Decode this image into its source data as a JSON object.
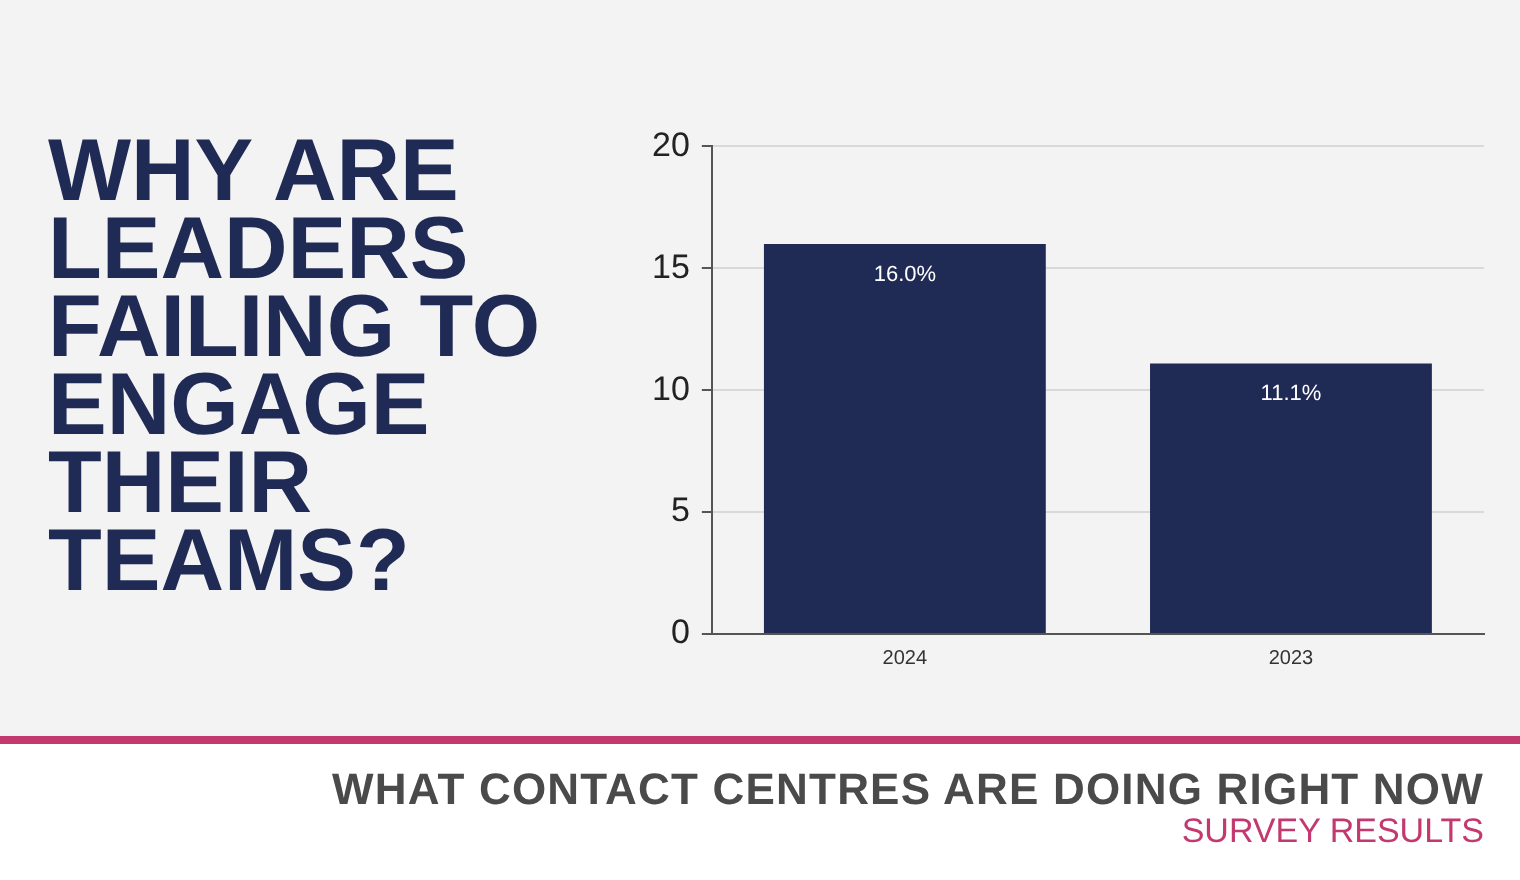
{
  "chart_data": {
    "type": "bar",
    "title": "WHY ARE LEADERS FAILING TO ENGAGE THEIR TEAMS?",
    "subtitle": "WHAT CONTACT CENTRES ARE DOING RIGHT NOW",
    "annotations": [
      "SURVEY RESULTS"
    ],
    "categories": [
      "2024",
      "2023"
    ],
    "values": [
      16.0,
      11.1
    ],
    "color": "#1f2a55",
    "value_labels": [
      "16.0%",
      "11.1%"
    ],
    "ylim": [
      0,
      20
    ],
    "yticks": [
      0,
      5,
      10,
      15,
      20
    ],
    "grid": "y"
  }
}
